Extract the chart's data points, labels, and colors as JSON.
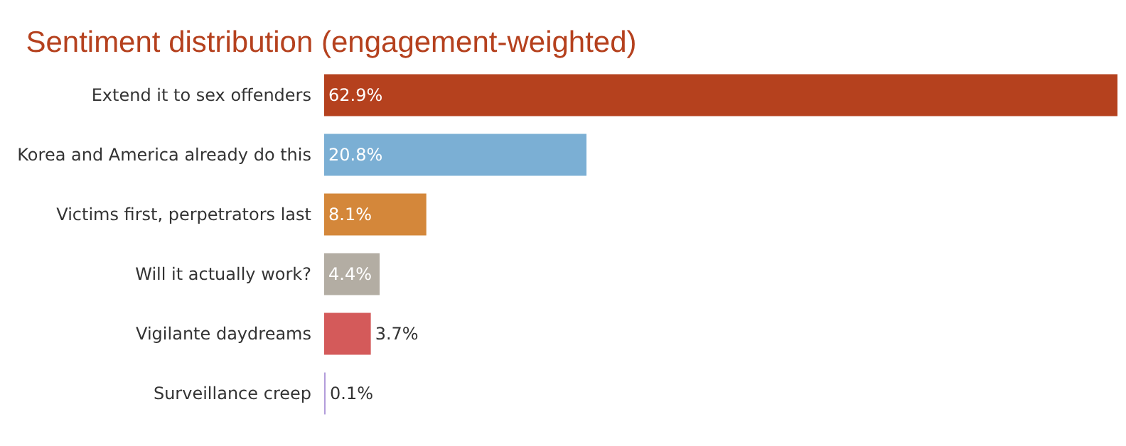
{
  "chart_data": {
    "type": "bar",
    "orientation": "horizontal",
    "title": "Sentiment distribution (engagement-weighted)",
    "categories": [
      "Extend it to sex offenders",
      "Korea and America already do this",
      "Victims first, perpetrators last",
      "Will it actually work?",
      "Vigilante daydreams",
      "Surveillance creep"
    ],
    "values": [
      62.9,
      20.8,
      8.1,
      4.4,
      3.7,
      0.1
    ],
    "value_labels": [
      "62.9%",
      "20.8%",
      "8.1%",
      "4.4%",
      "3.7%",
      "0.1%"
    ],
    "colors": [
      "#b5411e",
      "#7bafd4",
      "#d4873a",
      "#b3ada3",
      "#d45a5a",
      "#b39ddb"
    ]
  }
}
